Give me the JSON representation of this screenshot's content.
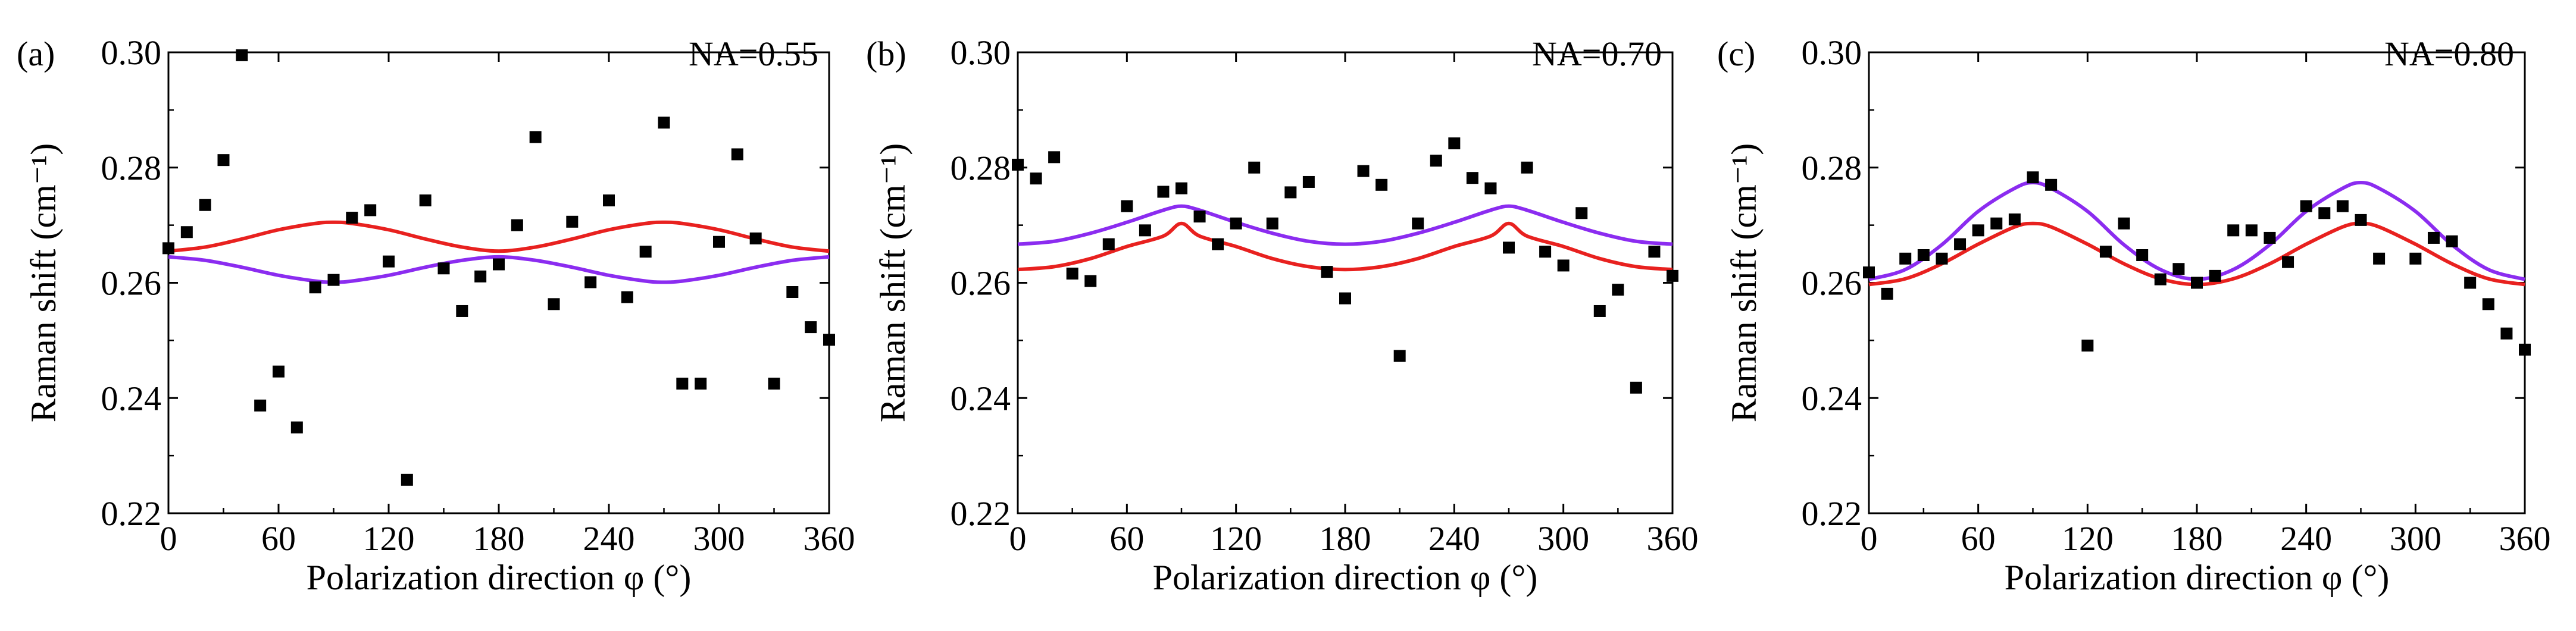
{
  "figure": {
    "panels": [
      "a",
      "b",
      "c"
    ]
  },
  "chart_data": [
    {
      "type": "scatter",
      "panel_label": "(a)",
      "annotation": "NA=0.55",
      "xlabel": "Polarization direction φ (°)",
      "ylabel": "Raman shift (cm⁻¹)",
      "xlim": [
        0,
        360
      ],
      "ylim": [
        0.22,
        0.3
      ],
      "xticks": [
        "0",
        "60",
        "120",
        "180",
        "240",
        "300",
        "360"
      ],
      "yticks": [
        "0.22",
        "0.24",
        "0.26",
        "0.28",
        "0.30"
      ],
      "grid": false,
      "series": [
        {
          "kind": "scatter",
          "color": "#000000",
          "x": [
            0,
            10,
            20,
            30,
            40,
            50,
            60,
            70,
            80,
            90,
            100,
            110,
            120,
            130,
            140,
            150,
            160,
            170,
            180,
            190,
            200,
            210,
            220,
            230,
            240,
            250,
            260,
            270,
            280,
            290,
            300,
            310,
            320,
            330,
            340,
            350,
            360
          ],
          "y": [
            0.266,
            0.2688,
            0.2735,
            0.2813,
            0.2995,
            0.2387,
            0.2446,
            0.2349,
            0.2592,
            0.2605,
            0.2713,
            0.2726,
            0.2637,
            0.2258,
            0.2743,
            0.2625,
            0.2551,
            0.2611,
            0.2632,
            0.27,
            0.2853,
            0.2563,
            0.2706,
            0.2601,
            0.2743,
            0.2575,
            0.2654,
            0.2878,
            0.2425,
            0.2425,
            0.2671,
            0.2823,
            0.2677,
            0.2425,
            0.2584,
            0.2523,
            0.2501
          ]
        },
        {
          "kind": "line",
          "color": "#e8211f",
          "x": [
            0,
            20,
            40,
            60,
            80,
            90,
            100,
            120,
            140,
            160,
            180,
            200,
            220,
            240,
            260,
            270,
            280,
            300,
            320,
            340,
            360
          ],
          "y": [
            0.2655,
            0.2662,
            0.2676,
            0.2692,
            0.2703,
            0.2705,
            0.2703,
            0.2692,
            0.2676,
            0.2662,
            0.2655,
            0.2662,
            0.2676,
            0.2692,
            0.2703,
            0.2705,
            0.2703,
            0.2692,
            0.2676,
            0.2662,
            0.2655
          ]
        },
        {
          "kind": "line",
          "color": "#8b2cf0",
          "x": [
            0,
            20,
            40,
            60,
            80,
            90,
            100,
            120,
            140,
            160,
            180,
            200,
            220,
            240,
            260,
            270,
            280,
            300,
            320,
            340,
            360
          ],
          "y": [
            0.2645,
            0.2639,
            0.2627,
            0.2613,
            0.2603,
            0.2601,
            0.2603,
            0.2613,
            0.2627,
            0.2639,
            0.2645,
            0.2639,
            0.2627,
            0.2613,
            0.2603,
            0.2601,
            0.2603,
            0.2613,
            0.2627,
            0.2639,
            0.2645
          ]
        }
      ]
    },
    {
      "type": "scatter",
      "panel_label": "(b)",
      "annotation": "NA=0.70",
      "xlabel": "Polarization direction φ (°)",
      "ylabel": "Raman shift (cm⁻¹)",
      "xlim": [
        0,
        360
      ],
      "ylim": [
        0.22,
        0.3
      ],
      "xticks": [
        "0",
        "60",
        "120",
        "180",
        "240",
        "300",
        "360"
      ],
      "yticks": [
        "0.22",
        "0.24",
        "0.26",
        "0.28",
        "0.30"
      ],
      "grid": false,
      "series": [
        {
          "kind": "scatter",
          "color": "#000000",
          "x": [
            0,
            10,
            20,
            30,
            40,
            50,
            60,
            70,
            80,
            90,
            100,
            110,
            120,
            130,
            140,
            150,
            160,
            170,
            180,
            190,
            200,
            210,
            220,
            230,
            240,
            250,
            260,
            270,
            280,
            290,
            300,
            310,
            320,
            330,
            340,
            350,
            360
          ],
          "y": [
            0.2805,
            0.2781,
            0.2818,
            0.2616,
            0.2603,
            0.2667,
            0.2733,
            0.2691,
            0.2758,
            0.2764,
            0.2715,
            0.2667,
            0.2703,
            0.28,
            0.2703,
            0.2757,
            0.2775,
            0.2619,
            0.2573,
            0.2794,
            0.277,
            0.2473,
            0.2703,
            0.2812,
            0.2842,
            0.2782,
            0.2764,
            0.2661,
            0.28,
            0.2654,
            0.263,
            0.2721,
            0.2551,
            0.2588,
            0.2418,
            0.2654,
            0.2612
          ]
        },
        {
          "kind": "line",
          "color": "#e8211f",
          "x": [
            0,
            20,
            40,
            60,
            80,
            90,
            100,
            120,
            140,
            160,
            180,
            200,
            220,
            240,
            260,
            270,
            280,
            300,
            320,
            340,
            360
          ],
          "y": [
            0.2623,
            0.2628,
            0.2642,
            0.2663,
            0.2681,
            0.2703,
            0.2681,
            0.2663,
            0.2642,
            0.2628,
            0.2623,
            0.2628,
            0.2642,
            0.2663,
            0.2681,
            0.2703,
            0.2681,
            0.2663,
            0.2642,
            0.2628,
            0.2623
          ]
        },
        {
          "kind": "line",
          "color": "#8b2cf0",
          "x": [
            0,
            20,
            40,
            60,
            80,
            90,
            100,
            120,
            140,
            160,
            180,
            200,
            220,
            240,
            260,
            270,
            280,
            300,
            320,
            340,
            360
          ],
          "y": [
            0.2667,
            0.2672,
            0.2686,
            0.2705,
            0.2726,
            0.2733,
            0.2726,
            0.2705,
            0.2686,
            0.2672,
            0.2667,
            0.2672,
            0.2686,
            0.2705,
            0.2726,
            0.2733,
            0.2726,
            0.2705,
            0.2686,
            0.2672,
            0.2667
          ]
        }
      ]
    },
    {
      "type": "scatter",
      "panel_label": "(c)",
      "annotation": "NA=0.80",
      "xlabel": "Polarization direction φ (°)",
      "ylabel": "Raman shift (cm⁻¹)",
      "xlim": [
        0,
        360
      ],
      "ylim": [
        0.22,
        0.3
      ],
      "xticks": [
        "0",
        "60",
        "120",
        "180",
        "240",
        "300",
        "360"
      ],
      "yticks": [
        "0.22",
        "0.24",
        "0.26",
        "0.28",
        "0.30"
      ],
      "grid": false,
      "series": [
        {
          "kind": "scatter",
          "color": "#000000",
          "x": [
            0,
            10,
            20,
            30,
            40,
            50,
            60,
            70,
            80,
            90,
            100,
            120,
            130,
            140,
            150,
            160,
            170,
            180,
            190,
            200,
            210,
            220,
            230,
            240,
            250,
            260,
            270,
            280,
            300,
            310,
            320,
            330,
            340,
            350,
            360
          ],
          "y": [
            0.2618,
            0.2581,
            0.2642,
            0.2648,
            0.2642,
            0.2667,
            0.2691,
            0.2703,
            0.271,
            0.2783,
            0.277,
            0.2491,
            0.2654,
            0.2703,
            0.2648,
            0.2606,
            0.2624,
            0.26,
            0.2612,
            0.2691,
            0.2691,
            0.2678,
            0.2636,
            0.2733,
            0.2721,
            0.2733,
            0.2709,
            0.2642,
            0.2642,
            0.2678,
            0.2672,
            0.26,
            0.2563,
            0.2512,
            0.2484
          ]
        },
        {
          "kind": "line",
          "color": "#e8211f",
          "x": [
            0,
            20,
            40,
            60,
            80,
            90,
            100,
            120,
            140,
            160,
            180,
            200,
            220,
            240,
            260,
            270,
            280,
            300,
            320,
            340,
            360
          ],
          "y": [
            0.2597,
            0.2607,
            0.2633,
            0.2667,
            0.2697,
            0.2703,
            0.2697,
            0.2667,
            0.2633,
            0.2607,
            0.2597,
            0.2607,
            0.2633,
            0.2667,
            0.2697,
            0.2703,
            0.2697,
            0.2667,
            0.2633,
            0.2607,
            0.2597
          ]
        },
        {
          "kind": "line",
          "color": "#8b2cf0",
          "x": [
            0,
            20,
            40,
            60,
            80,
            90,
            100,
            120,
            140,
            160,
            180,
            200,
            220,
            240,
            260,
            270,
            280,
            300,
            320,
            340,
            360
          ],
          "y": [
            0.2606,
            0.2623,
            0.2666,
            0.2724,
            0.2764,
            0.2774,
            0.2764,
            0.2724,
            0.2666,
            0.2623,
            0.2606,
            0.2623,
            0.2666,
            0.2724,
            0.2764,
            0.2774,
            0.2764,
            0.2724,
            0.2666,
            0.2623,
            0.2606
          ]
        }
      ]
    }
  ]
}
